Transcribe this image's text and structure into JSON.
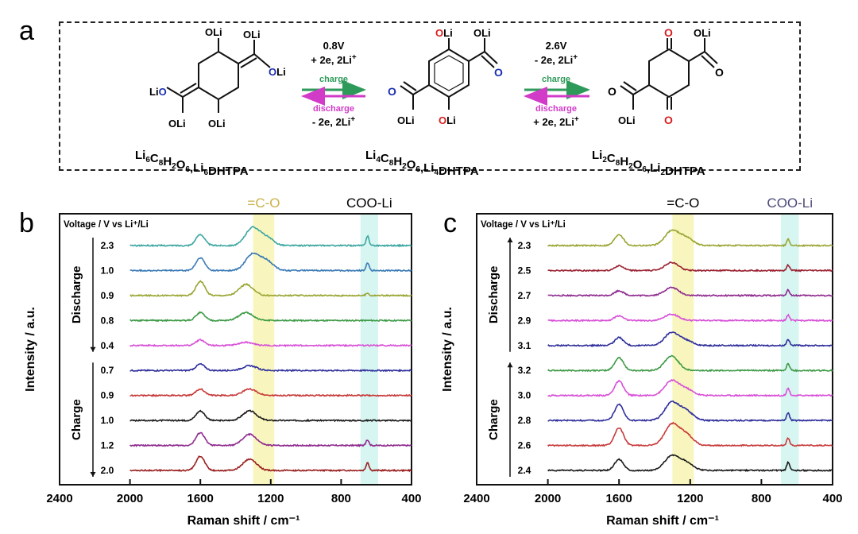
{
  "panel_a": {
    "letter": "a",
    "compounds": [
      {
        "formula": "Li6C8H2O6,Li6DHTPA"
      },
      {
        "formula": "Li4C8H2O6,Li4DHTPA"
      },
      {
        "formula": "Li2C8H2O6,Li2DHTPA"
      }
    ],
    "arrows": [
      {
        "voltage": "0.8V",
        "top_eq": "+ 2e, 2Li+",
        "charge": "charge",
        "discharge": "discharge",
        "bottom_eq": "- 2e, 2Li+"
      },
      {
        "voltage": "2.6V",
        "top_eq": "- 2e, 2Li+",
        "charge": "charge",
        "discharge": "discharge",
        "bottom_eq": "+ 2e, 2Li+"
      }
    ],
    "colors": {
      "charge": "#2e9a5a",
      "discharge": "#d23ac8",
      "carbonyl_red": "#d62020",
      "oxygen_blue": "#1a2fb0"
    }
  },
  "chart_data": [
    {
      "panel": "b",
      "type": "line",
      "xlabel": "Raman shift / cm⁻¹",
      "ylabel": "Intensity / a.u.",
      "xlim": [
        2400,
        400
      ],
      "xticks": [
        2400,
        2000,
        1600,
        1200,
        800,
        400
      ],
      "xtick_labels": [
        "2400",
        "2000",
        "1600",
        "1200",
        "800",
        "400"
      ],
      "x_start": 2000,
      "x_end": 400,
      "legend_title": "Voltage / V vs Li⁺/Li",
      "regions": [
        {
          "label": "=C-O",
          "range": [
            1300,
            1180
          ],
          "color": "#f5f3a8",
          "label_color": "#c9b24a"
        },
        {
          "label": "COO-Li",
          "range": [
            690,
            590
          ],
          "color": "#c9f1ec",
          "label_color": "#000000"
        }
      ],
      "groups": [
        {
          "label": "Discharge",
          "direction": "down",
          "count": 5
        },
        {
          "label": "Charge",
          "direction": "down",
          "count": 5
        }
      ],
      "series": [
        {
          "name": "2.3",
          "color": "#3ba6a0",
          "peaks": [
            [
              1600,
              14
            ],
            [
              1305,
              22
            ],
            [
              1225,
              10
            ],
            [
              650,
              12
            ]
          ]
        },
        {
          "name": "1.0",
          "color": "#3a7ab5",
          "peaks": [
            [
              1600,
              16
            ],
            [
              1305,
              20
            ],
            [
              1225,
              12
            ],
            [
              650,
              10
            ]
          ]
        },
        {
          "name": "0.9",
          "color": "#9aa532",
          "peaks": [
            [
              1600,
              18
            ],
            [
              1340,
              14
            ],
            [
              650,
              3
            ]
          ]
        },
        {
          "name": "0.8",
          "color": "#3d9a45",
          "peaks": [
            [
              1600,
              10
            ],
            [
              1340,
              10
            ]
          ]
        },
        {
          "name": "0.4",
          "color": "#d84fd8",
          "peaks": [
            [
              1600,
              7
            ],
            [
              1340,
              4
            ]
          ]
        },
        {
          "name": "0.7",
          "color": "#2e2e9c",
          "peaks": [
            [
              1600,
              8
            ],
            [
              1320,
              6
            ]
          ]
        },
        {
          "name": "0.9",
          "color": "#c83a3a",
          "peaks": [
            [
              1600,
              8
            ],
            [
              1320,
              8
            ]
          ]
        },
        {
          "name": "1.0",
          "color": "#1a1a1a",
          "peaks": [
            [
              1600,
              12
            ],
            [
              1320,
              12
            ]
          ]
        },
        {
          "name": "1.2",
          "color": "#8e2a8e",
          "peaks": [
            [
              1600,
              16
            ],
            [
              1320,
              14
            ],
            [
              650,
              7
            ]
          ]
        },
        {
          "name": "2.0",
          "color": "#9a2020",
          "peaks": [
            [
              1600,
              18
            ],
            [
              1320,
              14
            ],
            [
              650,
              10
            ]
          ]
        }
      ]
    },
    {
      "panel": "c",
      "type": "line",
      "xlabel": "Raman shift / cm⁻¹",
      "ylabel": "Intensity / a.u.",
      "xlim": [
        2400,
        400
      ],
      "xticks": [
        2400,
        2000,
        1600,
        1200,
        800,
        400
      ],
      "xtick_labels": [
        "2400",
        "2000",
        "1600",
        "1200",
        "800",
        "400"
      ],
      "x_start": 2000,
      "x_end": 400,
      "legend_title": "Voltage / V vs Li⁺/Li",
      "regions": [
        {
          "label": "=C-O",
          "range": [
            1300,
            1180
          ],
          "color": "#f5f3a8",
          "label_color": "#000000"
        },
        {
          "label": "COO-Li",
          "range": [
            690,
            590
          ],
          "color": "#c9f1ec",
          "label_color": "#4a4a7a"
        }
      ],
      "groups": [
        {
          "label": "Discharge",
          "direction": "up",
          "count": 5
        },
        {
          "label": "Charge",
          "direction": "up",
          "count": 5
        }
      ],
      "series": [
        {
          "name": "2.3",
          "color": "#9aa532",
          "peaks": [
            [
              1600,
              14
            ],
            [
              1305,
              18
            ],
            [
              1225,
              10
            ],
            [
              650,
              8
            ]
          ]
        },
        {
          "name": "2.5",
          "color": "#9a2030",
          "peaks": [
            [
              1600,
              6
            ],
            [
              1305,
              10
            ],
            [
              650,
              7
            ]
          ]
        },
        {
          "name": "2.7",
          "color": "#8e2a8e",
          "peaks": [
            [
              1600,
              6
            ],
            [
              1305,
              10
            ],
            [
              650,
              7
            ]
          ]
        },
        {
          "name": "2.9",
          "color": "#d84fd8",
          "peaks": [
            [
              1600,
              6
            ],
            [
              1305,
              8
            ],
            [
              650,
              7
            ]
          ]
        },
        {
          "name": "3.1",
          "color": "#2e2e9c",
          "peaks": [
            [
              1600,
              10
            ],
            [
              1305,
              16
            ],
            [
              1225,
              6
            ],
            [
              650,
              8
            ]
          ]
        },
        {
          "name": "3.2",
          "color": "#3d9a45",
          "peaks": [
            [
              1600,
              16
            ],
            [
              1305,
              18
            ],
            [
              650,
              9
            ]
          ]
        },
        {
          "name": "3.0",
          "color": "#d84fd8",
          "peaks": [
            [
              1600,
              18
            ],
            [
              1305,
              18
            ],
            [
              1225,
              8
            ],
            [
              650,
              9
            ]
          ]
        },
        {
          "name": "2.8",
          "color": "#2e2e9c",
          "peaks": [
            [
              1600,
              20
            ],
            [
              1305,
              22
            ],
            [
              1225,
              12
            ],
            [
              650,
              9
            ]
          ]
        },
        {
          "name": "2.6",
          "color": "#c83a3a",
          "peaks": [
            [
              1600,
              22
            ],
            [
              1305,
              26
            ],
            [
              1225,
              14
            ],
            [
              650,
              9
            ]
          ]
        },
        {
          "name": "2.4",
          "color": "#1a1a1a",
          "peaks": [
            [
              1600,
              14
            ],
            [
              1305,
              18
            ],
            [
              1225,
              10
            ],
            [
              650,
              10
            ]
          ]
        }
      ]
    }
  ]
}
